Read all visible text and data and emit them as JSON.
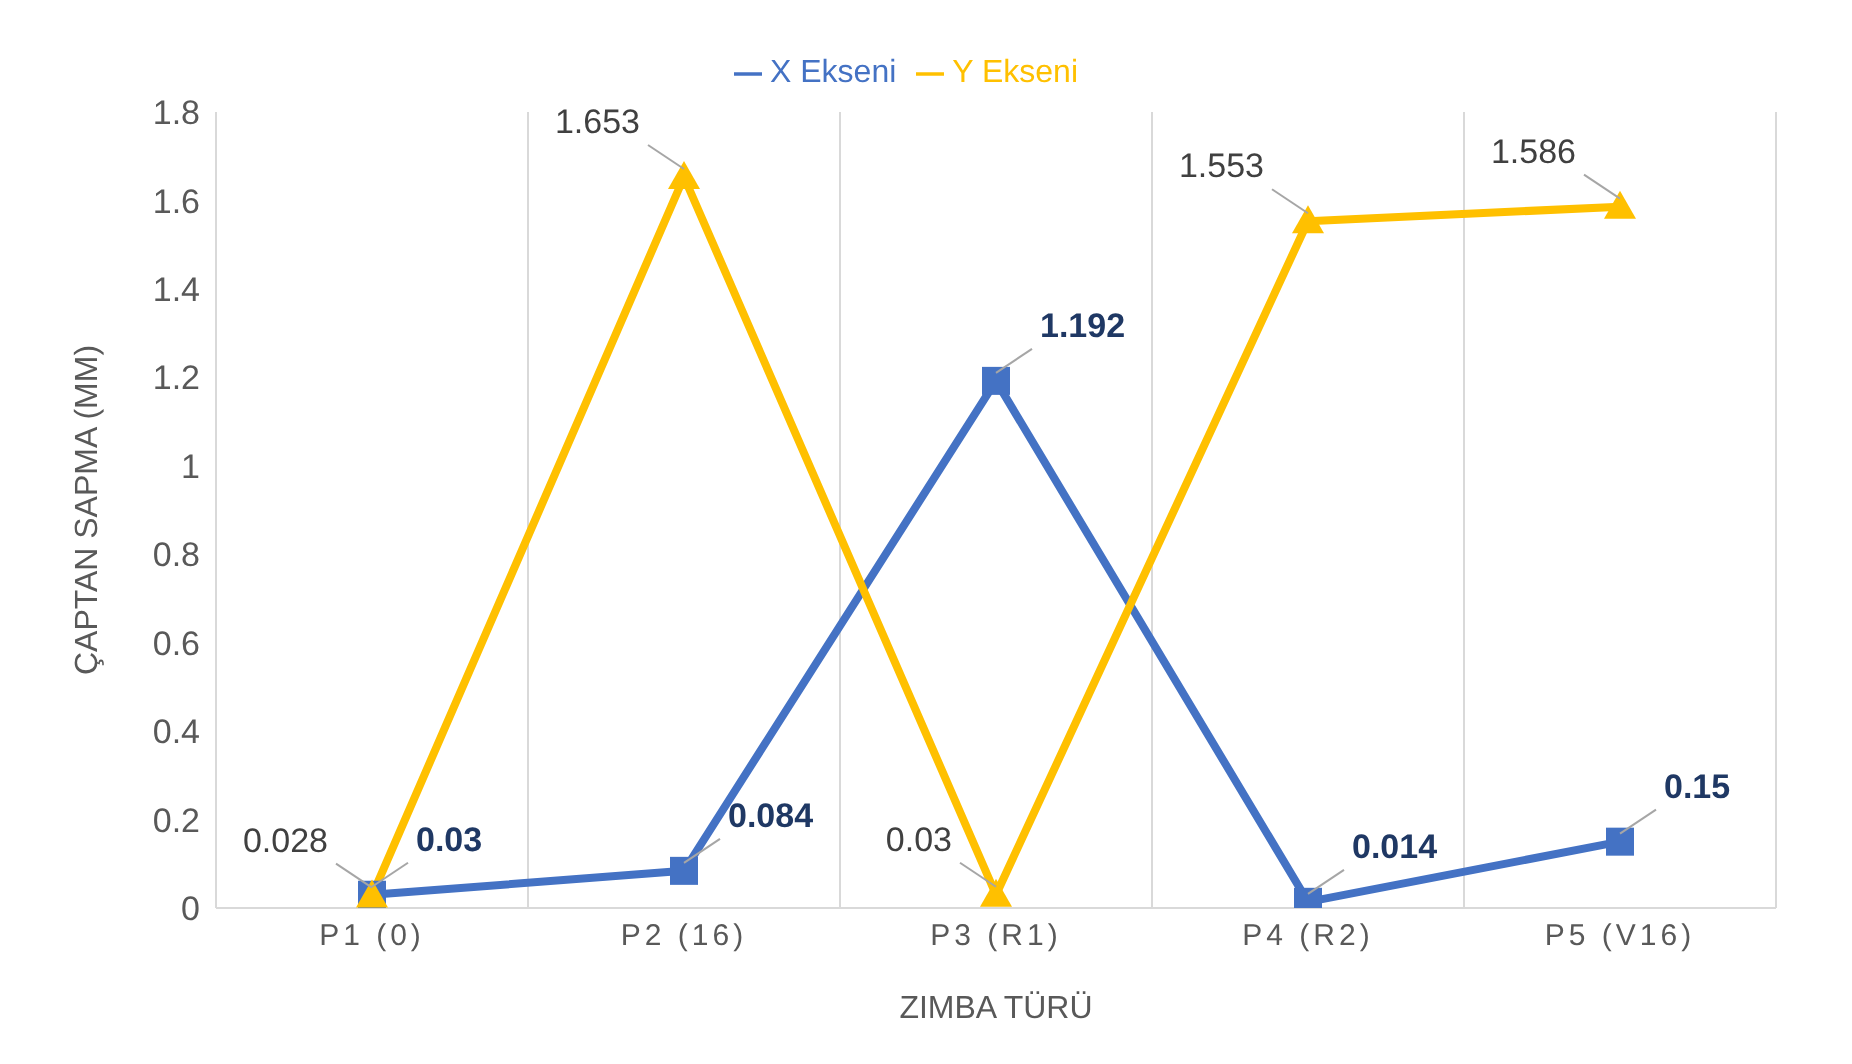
{
  "chart_data": {
    "type": "line",
    "xlabel": "ZIMBA TÜRÜ",
    "ylabel": "ÇAPTAN  SAPMA (MM)",
    "categories": [
      "P1 (0)",
      "P2 (16)",
      "P3 (R1)",
      "P4 (R2)",
      "P5 (V16)"
    ],
    "series": [
      {
        "name": "X Ekseni",
        "color": "#4472c4",
        "marker": "square",
        "values": [
          0.03,
          0.084,
          1.192,
          0.014,
          0.15
        ]
      },
      {
        "name": "Y Ekseni",
        "color": "#ffc000",
        "marker": "triangle",
        "values": [
          0.028,
          1.653,
          0.03,
          1.553,
          1.586
        ]
      }
    ],
    "ylim": [
      0,
      1.8
    ],
    "yticks": [
      0,
      0.2,
      0.4,
      0.6,
      0.8,
      1,
      1.2,
      1.4,
      1.6,
      1.8
    ],
    "grid": "x",
    "legend": "top",
    "data_labels": true
  }
}
